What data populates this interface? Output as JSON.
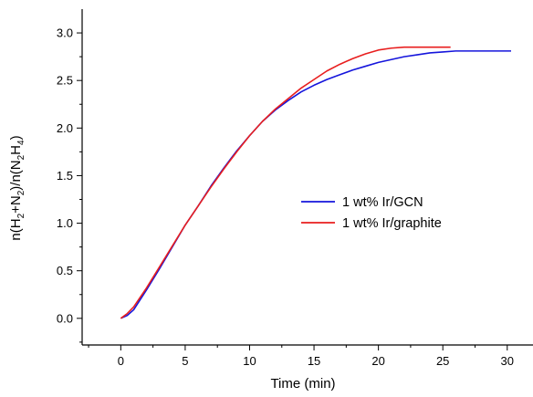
{
  "chart_data": {
    "type": "line",
    "xlabel": "Time (min)",
    "ylabel": {
      "parts": [
        "n(H",
        "2",
        "+N",
        "2",
        ")/n(N",
        "2",
        "H",
        "4",
        ")"
      ]
    },
    "xlim": [
      -3,
      32
    ],
    "ylim": [
      -0.28,
      3.25
    ],
    "xticks": [
      0,
      5,
      10,
      15,
      20,
      25,
      30
    ],
    "xtick_labels": [
      "0",
      "5",
      "10",
      "15",
      "20",
      "25",
      "30"
    ],
    "yticks": [
      0.0,
      0.5,
      1.0,
      1.5,
      2.0,
      2.5,
      3.0
    ],
    "ytick_labels": [
      "0.0",
      "0.5",
      "1.0",
      "1.5",
      "2.0",
      "2.5",
      "3.0"
    ],
    "grid": false,
    "legend_position": "center-right",
    "series": [
      {
        "name": "1 wt% Ir/GCN",
        "color": "#1515dc",
        "x": [
          0,
          0.5,
          1,
          2,
          3,
          4,
          5,
          6,
          7,
          8,
          9,
          10,
          11,
          12,
          13,
          14,
          15,
          16,
          17,
          18,
          19,
          20,
          21,
          22,
          23,
          24,
          25,
          26,
          27,
          28,
          29,
          30.3
        ],
        "y": [
          0.0,
          0.03,
          0.09,
          0.3,
          0.52,
          0.75,
          0.98,
          1.18,
          1.39,
          1.58,
          1.76,
          1.92,
          2.07,
          2.19,
          2.29,
          2.38,
          2.45,
          2.51,
          2.56,
          2.61,
          2.65,
          2.69,
          2.72,
          2.75,
          2.77,
          2.79,
          2.8,
          2.81,
          2.81,
          2.81,
          2.81,
          2.81
        ]
      },
      {
        "name": "1 wt% Ir/graphite",
        "color": "#e81e1e",
        "x": [
          0,
          0.5,
          1,
          2,
          3,
          4,
          5,
          6,
          7,
          8,
          9,
          10,
          11,
          12,
          13,
          14,
          15,
          16,
          17,
          18,
          19,
          20,
          21,
          22,
          23,
          24,
          25,
          25.6
        ],
        "y": [
          0.0,
          0.05,
          0.12,
          0.32,
          0.54,
          0.76,
          0.98,
          1.18,
          1.38,
          1.57,
          1.75,
          1.92,
          2.07,
          2.2,
          2.31,
          2.42,
          2.51,
          2.6,
          2.67,
          2.73,
          2.78,
          2.82,
          2.84,
          2.85,
          2.85,
          2.85,
          2.85,
          2.85
        ]
      }
    ]
  }
}
